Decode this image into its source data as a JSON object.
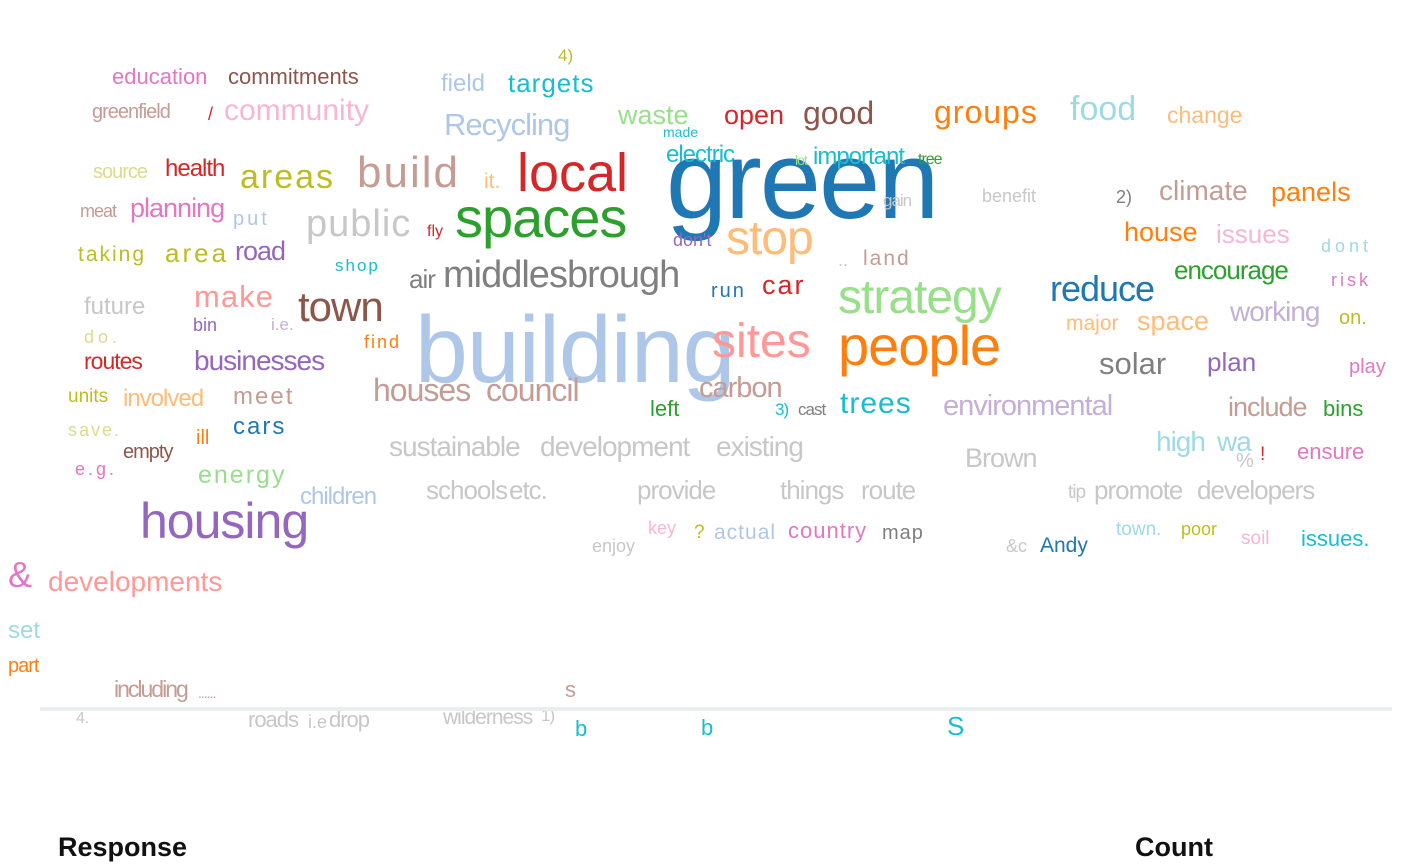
{
  "chart_data": {
    "type": "wordcloud",
    "title": "",
    "words": [
      {
        "text": "green",
        "color": "#1f77b4"
      },
      {
        "text": "building",
        "color": "#aec7e8"
      },
      {
        "text": "people",
        "color": "#ff7f0e"
      },
      {
        "text": "spaces",
        "color": "#2ca02c"
      },
      {
        "text": "local",
        "color": "#d62728"
      },
      {
        "text": "strategy",
        "color": "#98df8a"
      },
      {
        "text": "sites",
        "color": "#ff9896"
      },
      {
        "text": "housing",
        "color": "#9467bd"
      },
      {
        "text": "stop",
        "color": "#ffbb78"
      },
      {
        "text": "town",
        "color": "#8c564b"
      },
      {
        "text": "build",
        "color": "#c49c94"
      },
      {
        "text": "middlesbrough",
        "color": "#7f7f7f"
      },
      {
        "text": "public",
        "color": "#c7c7c7"
      },
      {
        "text": "areas",
        "color": "#bcbd22"
      },
      {
        "text": "reduce",
        "color": "#1f77b4"
      },
      {
        "text": "houses",
        "color": "#c49c94"
      },
      {
        "text": "council",
        "color": "#c49c94"
      },
      {
        "text": "developments",
        "color": "#ff9896"
      },
      {
        "text": "&",
        "color": "#e377c2"
      },
      {
        "text": "community",
        "color": "#f7b6d2"
      },
      {
        "text": "climate",
        "color": "#c49c94"
      },
      {
        "text": "panels",
        "color": "#ff7f0e"
      },
      {
        "text": "groups",
        "color": "#ff7f0e"
      },
      {
        "text": "food",
        "color": "#9edae5"
      },
      {
        "text": "good",
        "color": "#8c564b"
      },
      {
        "text": "open",
        "color": "#d62728"
      },
      {
        "text": "waste",
        "color": "#98df8a"
      },
      {
        "text": "change",
        "color": "#ffbb78"
      },
      {
        "text": "Recycling",
        "color": "#aec7e8"
      },
      {
        "text": "targets",
        "color": "#17becf"
      },
      {
        "text": "field",
        "color": "#aec7e8"
      },
      {
        "text": "4)",
        "color": "#bcbd22"
      },
      {
        "text": "education",
        "color": "#e377c2"
      },
      {
        "text": "commitments",
        "color": "#8c564b"
      },
      {
        "text": "greenfield",
        "color": "#c49c94"
      },
      {
        "text": "/",
        "color": "#d62728"
      },
      {
        "text": "made",
        "color": "#17becf"
      },
      {
        "text": "electric",
        "color": "#17becf"
      },
      {
        "text": "lot",
        "color": "#98df8a"
      },
      {
        "text": "important",
        "color": "#17becf"
      },
      {
        "text": "tree",
        "color": "#2ca02c"
      },
      {
        "text": "source",
        "color": "#dbdb8d"
      },
      {
        "text": "health",
        "color": "#d62728"
      },
      {
        "text": "it.",
        "color": "#ffbb78"
      },
      {
        "text": "benefit",
        "color": "#c7c7c7"
      },
      {
        "text": "2)",
        "color": "#7f7f7f"
      },
      {
        "text": "meat",
        "color": "#c49c94"
      },
      {
        "text": "planning",
        "color": "#e377c2"
      },
      {
        "text": "put",
        "color": "#aec7e8"
      },
      {
        "text": "fly",
        "color": "#d62728"
      },
      {
        "text": "don't",
        "color": "#9467bd"
      },
      {
        "text": "gain",
        "color": "#c7c7c7"
      },
      {
        "text": "house",
        "color": "#ff7f0e"
      },
      {
        "text": "issues",
        "color": "#f7b6d2"
      },
      {
        "text": "dont",
        "color": "#9edae5"
      },
      {
        "text": "taking",
        "color": "#bcbd22"
      },
      {
        "text": "area",
        "color": "#bcbd22"
      },
      {
        "text": "road",
        "color": "#9467bd"
      },
      {
        "text": "shop",
        "color": "#17becf"
      },
      {
        "text": "..",
        "color": "#c7c7c7"
      },
      {
        "text": "land",
        "color": "#c49c94"
      },
      {
        "text": "encourage",
        "color": "#2ca02c"
      },
      {
        "text": "risk",
        "color": "#e377c2"
      },
      {
        "text": "air",
        "color": "#7f7f7f"
      },
      {
        "text": "run",
        "color": "#1f77b4"
      },
      {
        "text": "car",
        "color": "#d62728"
      },
      {
        "text": "future",
        "color": "#c7c7c7"
      },
      {
        "text": "make",
        "color": "#ff9896"
      },
      {
        "text": "do.",
        "color": "#dbdb8d"
      },
      {
        "text": "bin",
        "color": "#9467bd"
      },
      {
        "text": "i.e.",
        "color": "#c5b0d5"
      },
      {
        "text": "major",
        "color": "#ffbb78"
      },
      {
        "text": "space",
        "color": "#ffbb78"
      },
      {
        "text": "working",
        "color": "#c5b0d5"
      },
      {
        "text": "on.",
        "color": "#bcbd22"
      },
      {
        "text": "find",
        "color": "#ff7f0e"
      },
      {
        "text": "routes",
        "color": "#d62728"
      },
      {
        "text": "businesses",
        "color": "#9467bd"
      },
      {
        "text": "solar",
        "color": "#7f7f7f"
      },
      {
        "text": "plan",
        "color": "#9467bd"
      },
      {
        "text": "play",
        "color": "#e377c2"
      },
      {
        "text": "units",
        "color": "#bcbd22"
      },
      {
        "text": "involved",
        "color": "#ffbb78"
      },
      {
        "text": "meet",
        "color": "#c49c94"
      },
      {
        "text": "carbon",
        "color": "#c49c94"
      },
      {
        "text": "left",
        "color": "#2ca02c"
      },
      {
        "text": "3)",
        "color": "#17becf"
      },
      {
        "text": "cast",
        "color": "#7f7f7f"
      },
      {
        "text": "trees",
        "color": "#17becf"
      },
      {
        "text": "environmental",
        "color": "#c5b0d5"
      },
      {
        "text": "include",
        "color": "#c49c94"
      },
      {
        "text": "bins",
        "color": "#2ca02c"
      },
      {
        "text": "save.",
        "color": "#dbdb8d"
      },
      {
        "text": "ill",
        "color": "#ff7f0e"
      },
      {
        "text": "cars",
        "color": "#1f77b4"
      },
      {
        "text": "sustainable",
        "color": "#c7c7c7"
      },
      {
        "text": "development",
        "color": "#c7c7c7"
      },
      {
        "text": "existing",
        "color": "#c7c7c7"
      },
      {
        "text": "Brown",
        "color": "#c7c7c7"
      },
      {
        "text": "high",
        "color": "#9edae5"
      },
      {
        "text": "wa",
        "color": "#9edae5"
      },
      {
        "text": "%",
        "color": "#c7c7c7"
      },
      {
        "text": "!",
        "color": "#d62728"
      },
      {
        "text": "ensure",
        "color": "#e377c2"
      },
      {
        "text": "e.g.",
        "color": "#e377c2"
      },
      {
        "text": "empty",
        "color": "#8c564b"
      },
      {
        "text": "energy",
        "color": "#98df8a"
      },
      {
        "text": "schools",
        "color": "#c7c7c7"
      },
      {
        "text": "etc.",
        "color": "#c7c7c7"
      },
      {
        "text": "provide",
        "color": "#c7c7c7"
      },
      {
        "text": "things",
        "color": "#c7c7c7"
      },
      {
        "text": "route",
        "color": "#c7c7c7"
      },
      {
        "text": "tip",
        "color": "#c7c7c7"
      },
      {
        "text": "promote",
        "color": "#c7c7c7"
      },
      {
        "text": "developers",
        "color": "#c7c7c7"
      },
      {
        "text": "children",
        "color": "#aec7e8"
      },
      {
        "text": "key",
        "color": "#f7b6d2"
      },
      {
        "text": "?",
        "color": "#bcbd22"
      },
      {
        "text": "actual",
        "color": "#aec7e8"
      },
      {
        "text": "country",
        "color": "#e377c2"
      },
      {
        "text": "map",
        "color": "#7f7f7f"
      },
      {
        "text": "enjoy",
        "color": "#c7c7c7"
      },
      {
        "text": "&c",
        "color": "#c7c7c7"
      },
      {
        "text": "Andy",
        "color": "#1f77b4"
      },
      {
        "text": "town.",
        "color": "#9edae5"
      },
      {
        "text": "poor",
        "color": "#bcbd22"
      },
      {
        "text": "soil",
        "color": "#f7b6d2"
      },
      {
        "text": "issues.",
        "color": "#17becf"
      },
      {
        "text": "set",
        "color": "#9edae5"
      },
      {
        "text": "part",
        "color": "#ff7f0e"
      },
      {
        "text": "including",
        "color": "#c49c94"
      },
      {
        "text": "......",
        "color": "#c49c94"
      },
      {
        "text": "s",
        "color": "#c49c94"
      },
      {
        "text": "4.",
        "color": "#c7c7c7"
      },
      {
        "text": "roads",
        "color": "#c7c7c7"
      },
      {
        "text": "i.e",
        "color": "#c7c7c7"
      },
      {
        "text": "drop",
        "color": "#c7c7c7"
      },
      {
        "text": "wilderness",
        "color": "#c7c7c7"
      },
      {
        "text": "1)",
        "color": "#c7c7c7"
      },
      {
        "text": "b",
        "color": "#17becf"
      },
      {
        "text": "b",
        "color": "#17becf"
      },
      {
        "text": "S",
        "color": "#17becf"
      }
    ]
  },
  "table": {
    "response_header": "Response",
    "count_header": "Count"
  }
}
